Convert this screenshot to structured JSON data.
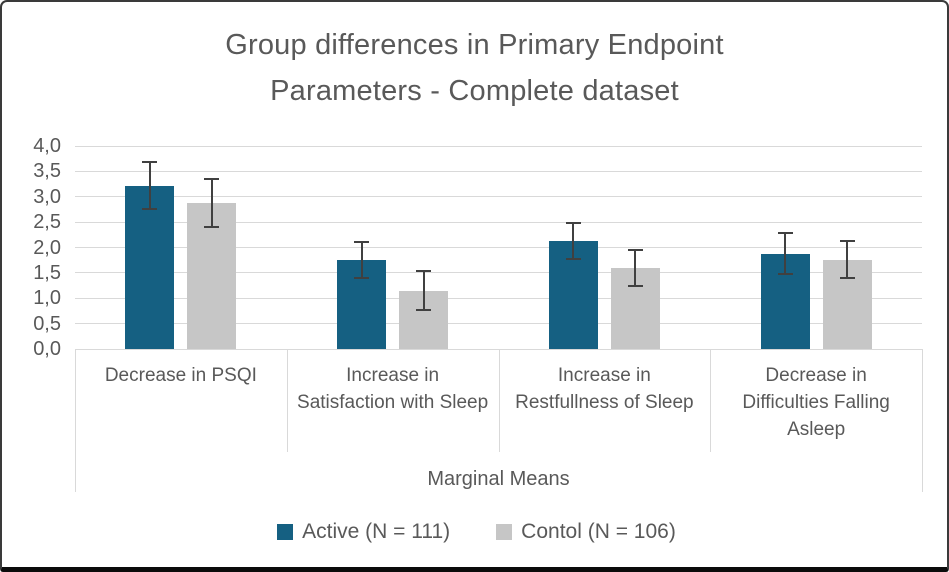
{
  "frame": {
    "background": "#ffffff",
    "border_color": "#3a3a3a",
    "bottom_border_color": "#0b0b0b"
  },
  "chart_data": {
    "type": "bar",
    "title": "Group differences in Primary Endpoint Parameters - Complete dataset",
    "title_lines": [
      "Group differences in Primary Endpoint",
      "Parameters - Complete dataset"
    ],
    "xlabel": "Marginal Means",
    "ylabel": "",
    "categories": [
      "Decrease in PSQI",
      "Increase in Satisfaction with Sleep",
      "Increase in Restfullness of Sleep",
      "Decrease in Difficulties Falling Asleep"
    ],
    "series": [
      {
        "name": "Active (N = 111)",
        "color": "#156082",
        "values": [
          3.22,
          1.75,
          2.13,
          1.88
        ],
        "error_bars": [
          0.48,
          0.38,
          0.37,
          0.42
        ]
      },
      {
        "name": "Contol (N = 106)",
        "color": "#c6c6c6",
        "values": [
          2.88,
          1.15,
          1.6,
          1.76
        ],
        "error_bars": [
          0.49,
          0.4,
          0.38,
          0.39
        ]
      }
    ],
    "ylim": [
      0,
      4
    ],
    "ytick_step": 0.5,
    "ytick_labels": [
      "0,0",
      "0,5",
      "1,0",
      "1,5",
      "2,0",
      "2,5",
      "3,0",
      "3,5",
      "4,0"
    ],
    "decimal_separator": ",",
    "grid": true,
    "gridline_color": "#d9d9d9",
    "error_bar_color": "#404040",
    "axis_text_color": "#595959",
    "title_color": "#595959",
    "legend_position": "bottom"
  }
}
